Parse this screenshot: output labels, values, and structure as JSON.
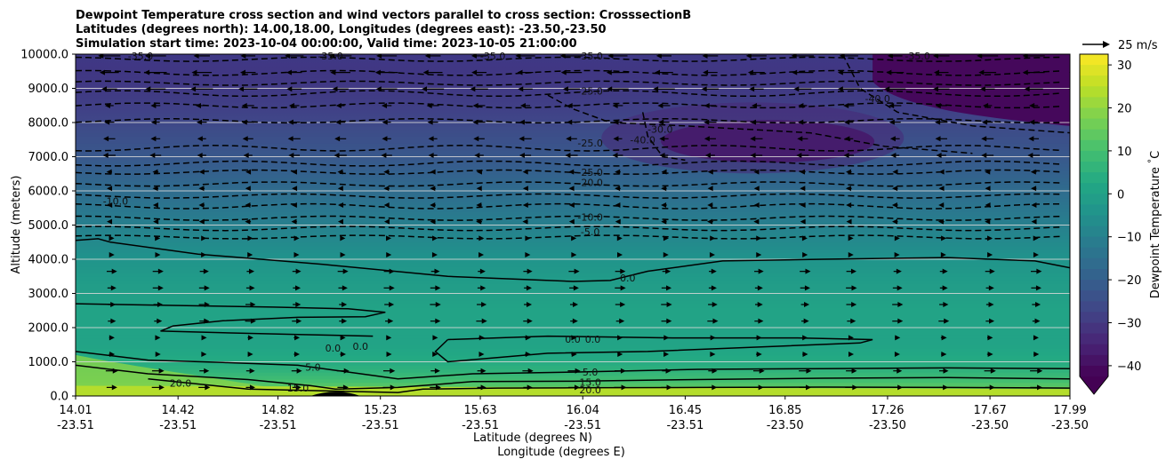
{
  "chart_data": {
    "type": "contour",
    "title_lines": [
      "Dewpoint Temperature cross section and wind vectors parallel to cross section: CrosssectionB",
      "Latitudes (degrees north): 14.00,18.00, Longitudes (degrees east): -23.50,-23.50",
      "Simulation start time: 2023-10-04 00:00:00, Valid time: 2023-10-05 21:00:00"
    ],
    "ylabel": "Altitude (meters)",
    "xlabel_lines": [
      "Latitude (degrees N)",
      "Longitude (degrees E)"
    ],
    "ylim": [
      0,
      10000
    ],
    "y_ticks": [
      "0.0",
      "1000.0",
      "2000.0",
      "3000.0",
      "4000.0",
      "5000.0",
      "6000.0",
      "7000.0",
      "8000.0",
      "9000.0",
      "10000.0"
    ],
    "x_ticks": [
      {
        "lat": "14.01",
        "lon": "-23.51"
      },
      {
        "lat": "14.42",
        "lon": "-23.51"
      },
      {
        "lat": "14.82",
        "lon": "-23.51"
      },
      {
        "lat": "15.23",
        "lon": "-23.51"
      },
      {
        "lat": "15.63",
        "lon": "-23.51"
      },
      {
        "lat": "16.04",
        "lon": "-23.51"
      },
      {
        "lat": "16.45",
        "lon": "-23.51"
      },
      {
        "lat": "16.85",
        "lon": "-23.50"
      },
      {
        "lat": "17.26",
        "lon": "-23.50"
      },
      {
        "lat": "17.67",
        "lon": "-23.50"
      },
      {
        "lat": "17.99",
        "lon": "-23.50"
      }
    ],
    "x_range": [
      14.01,
      17.99
    ],
    "grid": "horizontal",
    "colorbar": {
      "label": "Dewpoint Temperature $^\\circ$C",
      "ticks": [
        "30",
        "20",
        "10",
        "0",
        "−10",
        "−20",
        "−30",
        "−40"
      ],
      "tick_values": [
        30,
        20,
        10,
        0,
        -10,
        -20,
        -30,
        -40
      ],
      "range": [
        -42.5,
        32.5
      ],
      "extend": "min",
      "colormap": "viridis"
    },
    "quiver_key": "25 m/s",
    "contour_labels": [
      {
        "text": "-35.0",
        "x": 14.27,
        "y": 9950
      },
      {
        "text": "-35.0",
        "x": 15.03,
        "y": 9950
      },
      {
        "text": "-35.0",
        "x": 15.68,
        "y": 9950
      },
      {
        "text": "-35.0",
        "x": 16.07,
        "y": 9950
      },
      {
        "text": "-35.0",
        "x": 17.38,
        "y": 9950
      },
      {
        "text": "-25.0",
        "x": 16.07,
        "y": 8920
      },
      {
        "text": "-25.0",
        "x": 16.07,
        "y": 7400
      },
      {
        "text": "-25.0",
        "x": 16.07,
        "y": 6550
      },
      {
        "text": "-20.0",
        "x": 16.07,
        "y": 6250
      },
      {
        "text": "-30.0",
        "x": 16.35,
        "y": 7800
      },
      {
        "text": "-40.0",
        "x": 16.28,
        "y": 7500
      },
      {
        "text": "-40.0",
        "x": 17.22,
        "y": 8700
      },
      {
        "text": "-10.0",
        "x": 14.17,
        "y": 5700
      },
      {
        "text": "-10.0",
        "x": 16.07,
        "y": 5240
      },
      {
        "text": "-5.0",
        "x": 16.07,
        "y": 4800
      },
      {
        "text": "0.0",
        "x": 16.22,
        "y": 3450
      },
      {
        "text": "0.0",
        "x": 16.0,
        "y": 1660
      },
      {
        "text": "0.0",
        "x": 16.08,
        "y": 1660
      },
      {
        "text": "0.0",
        "x": 15.04,
        "y": 1400
      },
      {
        "text": "0.0",
        "x": 15.15,
        "y": 1450
      },
      {
        "text": "5.0",
        "x": 14.96,
        "y": 850
      },
      {
        "text": "5.0",
        "x": 16.07,
        "y": 700
      },
      {
        "text": "15.0",
        "x": 14.9,
        "y": 240
      },
      {
        "text": "15.0",
        "x": 16.07,
        "y": 400
      },
      {
        "text": "20.0",
        "x": 14.43,
        "y": 380
      },
      {
        "text": "20.0",
        "x": 16.07,
        "y": 180
      }
    ]
  },
  "colors": {
    "axis": "#000000",
    "grid": "#d9d9d9",
    "contour_line": "#000000",
    "arrow": "#000000"
  }
}
